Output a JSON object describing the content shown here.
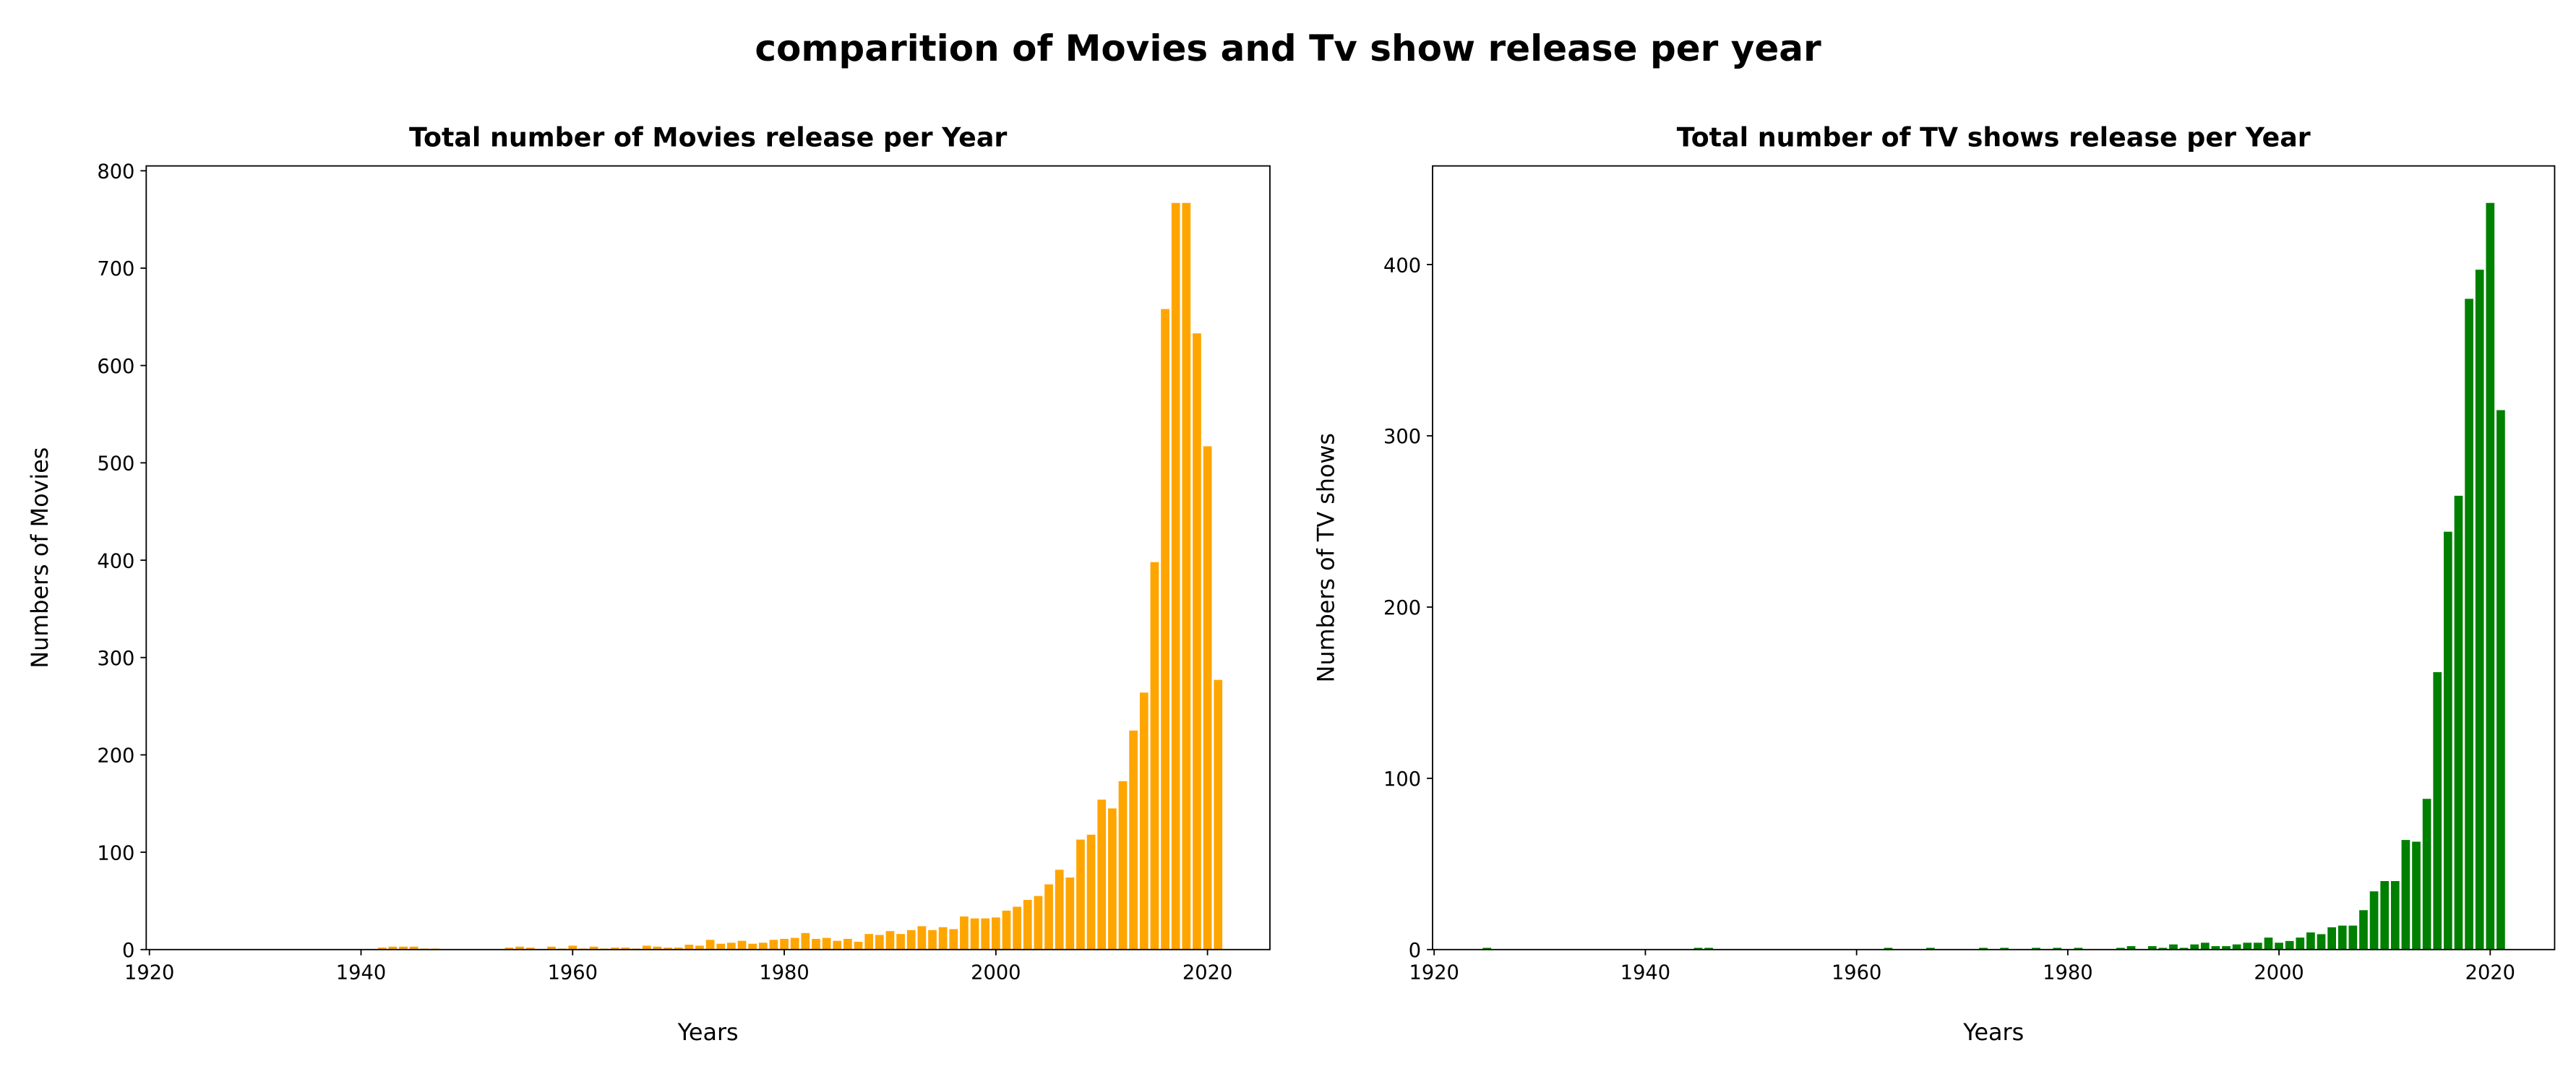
{
  "title": "comparition of Movies and Tv show release per year",
  "chart_data": [
    {
      "type": "bar",
      "title": "Total number of Movies release per Year",
      "xlabel": "Years",
      "ylabel": "Numbers of Movies",
      "color": "#ffa500",
      "x": [
        1942,
        1943,
        1944,
        1945,
        1946,
        1947,
        1954,
        1955,
        1956,
        1958,
        1959,
        1960,
        1961,
        1962,
        1963,
        1964,
        1965,
        1966,
        1967,
        1968,
        1969,
        1970,
        1971,
        1972,
        1973,
        1974,
        1975,
        1976,
        1977,
        1978,
        1979,
        1980,
        1981,
        1982,
        1983,
        1984,
        1985,
        1986,
        1987,
        1988,
        1989,
        1990,
        1991,
        1992,
        1993,
        1994,
        1995,
        1996,
        1997,
        1998,
        1999,
        2000,
        2001,
        2002,
        2003,
        2004,
        2005,
        2006,
        2007,
        2008,
        2009,
        2010,
        2011,
        2012,
        2013,
        2014,
        2015,
        2016,
        2017,
        2018,
        2019,
        2020,
        2021
      ],
      "values": [
        2,
        3,
        3,
        3,
        1,
        1,
        2,
        3,
        2,
        3,
        1,
        4,
        1,
        3,
        1,
        2,
        2,
        1,
        4,
        3,
        2,
        2,
        5,
        4,
        10,
        6,
        7,
        9,
        6,
        7,
        10,
        11,
        12,
        17,
        11,
        12,
        9,
        11,
        8,
        16,
        15,
        19,
        16,
        20,
        24,
        20,
        23,
        21,
        34,
        32,
        32,
        33,
        40,
        44,
        51,
        55,
        67,
        82,
        74,
        113,
        118,
        154,
        145,
        173,
        225,
        264,
        398,
        658,
        767,
        767,
        633,
        517,
        277
      ],
      "xlim": [
        1919.7,
        2025.9
      ],
      "ylim": [
        0,
        805
      ],
      "xticks": [
        1920,
        1940,
        1960,
        1980,
        2000,
        2020
      ],
      "yticks": [
        0,
        100,
        200,
        300,
        400,
        500,
        600,
        700,
        800
      ]
    },
    {
      "type": "bar",
      "title": "Total number of TV shows release per Year",
      "xlabel": "Years",
      "ylabel": "Numbers of TV shows",
      "color": "#008000",
      "x": [
        1925,
        1945,
        1946,
        1963,
        1967,
        1972,
        1974,
        1977,
        1979,
        1981,
        1985,
        1986,
        1988,
        1989,
        1990,
        1991,
        1992,
        1993,
        1994,
        1995,
        1996,
        1997,
        1998,
        1999,
        2000,
        2001,
        2002,
        2003,
        2004,
        2005,
        2006,
        2007,
        2008,
        2009,
        2010,
        2011,
        2012,
        2013,
        2014,
        2015,
        2016,
        2017,
        2018,
        2019,
        2020,
        2021
      ],
      "values": [
        1,
        1,
        1,
        1,
        1,
        1,
        1,
        1,
        1,
        1,
        1,
        2,
        2,
        1,
        3,
        1,
        3,
        4,
        2,
        2,
        3,
        4,
        4,
        7,
        4,
        5,
        7,
        10,
        9,
        13,
        14,
        14,
        23,
        34,
        40,
        40,
        64,
        63,
        88,
        162,
        244,
        265,
        380,
        397,
        436,
        315
      ],
      "xlim": [
        1919.85,
        2026.1
      ],
      "ylim": [
        0,
        457.6
      ],
      "xticks": [
        1920,
        1940,
        1960,
        1980,
        2000,
        2020
      ],
      "yticks": [
        0,
        100,
        200,
        300,
        400
      ]
    }
  ]
}
